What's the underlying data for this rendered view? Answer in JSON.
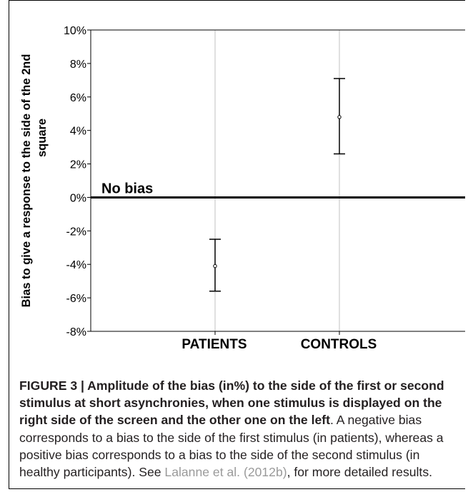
{
  "chart_data": {
    "type": "errorbar",
    "ylabel_line1": "Bias to give a response to the side of the 2nd",
    "ylabel_line2": "square",
    "ylim": [
      -8,
      10
    ],
    "yticks": [
      10,
      8,
      6,
      4,
      2,
      0,
      -2,
      -4,
      -6,
      -8
    ],
    "ytick_labels": [
      "10%",
      "8%",
      "6%",
      "4%",
      "2%",
      "0%",
      "-2%",
      "-4%",
      "-6%",
      "-8%"
    ],
    "categories": [
      "PATIENTS",
      "CONTROLS"
    ],
    "points": [
      {
        "category": "PATIENTS",
        "mean": -4.1,
        "upper": -2.5,
        "lower": -5.6
      },
      {
        "category": "CONTROLS",
        "mean": 4.8,
        "upper": 7.1,
        "lower": 2.6
      }
    ],
    "reference_line": {
      "y": 0,
      "label": "No bias"
    },
    "grid": "vertical",
    "colors": {
      "line": "#000000",
      "grid": "#c0c0c0"
    }
  },
  "caption": {
    "bold": "FIGURE 3 | Amplitude of the bias (in%) to the side of the first or second stimulus at short asynchronies, when one stimulus is displayed on the right side of the screen and the other one on the left",
    "text1": ". A negative bias corresponds to a bias to the side of the first stimulus (in patients), whereas a positive bias corresponds to a bias to the side of the second stimulus (in healthy participants). See ",
    "ref": "Lalanne et al. (2012b)",
    "text2": ", for more detailed results."
  }
}
